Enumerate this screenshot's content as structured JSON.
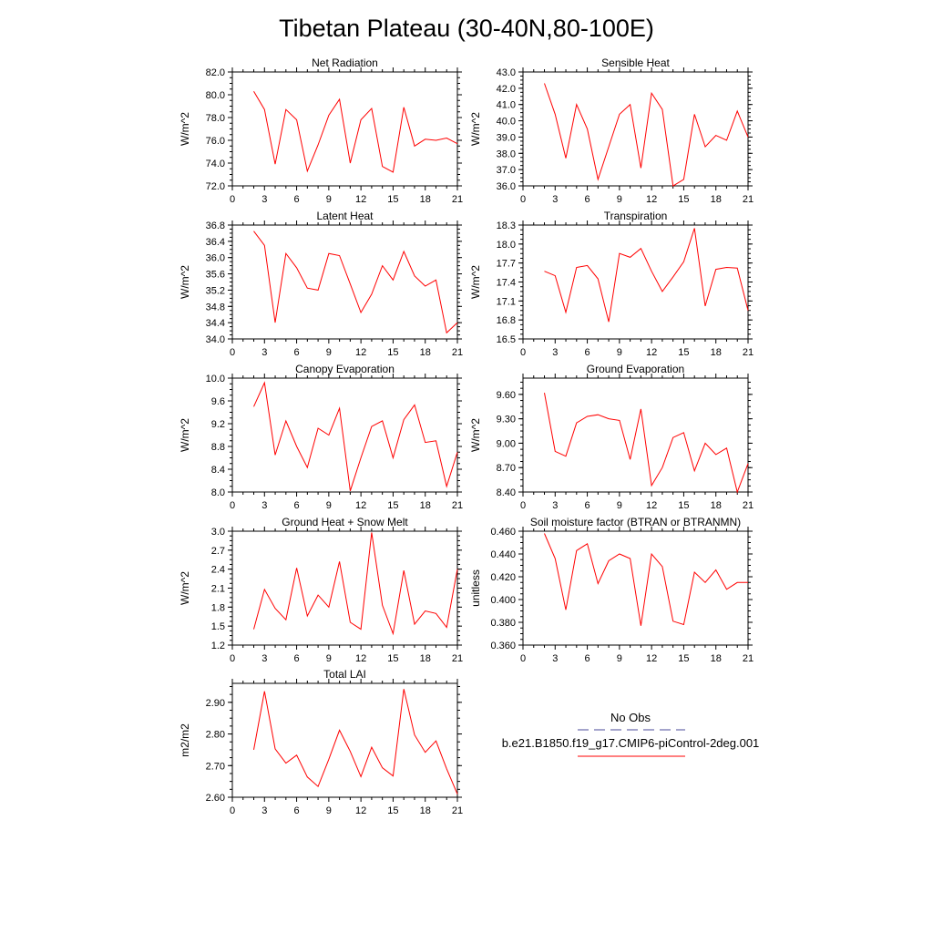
{
  "title": "Tibetan Plateau (30-40N,80-100E)",
  "legend": {
    "obs_label": "No Obs",
    "obs_color": "#4a4a9a",
    "model_label": "b.e21.B1850.f19_g17.CMIP6-piControl-2deg.001",
    "model_color": "#ff0000"
  },
  "chart_data": [
    {
      "type": "line",
      "title": "Net Radiation",
      "ylabel": "W/m^2",
      "xlim": [
        0,
        21
      ],
      "xticks": [
        0,
        3,
        6,
        9,
        12,
        15,
        18,
        21
      ],
      "ylim": [
        72.0,
        82.0
      ],
      "yticks": [
        "72.0",
        "74.0",
        "76.0",
        "78.0",
        "80.0",
        "82.0"
      ],
      "x": [
        2,
        3,
        4,
        5,
        6,
        7,
        8,
        9,
        10,
        11,
        12,
        13,
        14,
        15,
        16,
        17,
        18,
        19,
        20,
        21
      ],
      "series": [
        {
          "name": "b.e21.B1850.f19_g17.CMIP6-piControl-2deg.001",
          "values": [
            80.3,
            78.7,
            73.9,
            78.7,
            77.8,
            73.3,
            75.6,
            78.2,
            79.6,
            74.0,
            77.8,
            78.8,
            73.7,
            73.2,
            78.9,
            75.5,
            76.1,
            76.0,
            76.2,
            75.7
          ]
        }
      ]
    },
    {
      "type": "line",
      "title": "Sensible Heat",
      "ylabel": "W/m^2",
      "xlim": [
        0,
        21
      ],
      "xticks": [
        0,
        3,
        6,
        9,
        12,
        15,
        18,
        21
      ],
      "ylim": [
        36.0,
        43.0
      ],
      "yticks": [
        "36.0",
        "37.0",
        "38.0",
        "39.0",
        "40.0",
        "41.0",
        "42.0",
        "43.0"
      ],
      "x": [
        2,
        3,
        4,
        5,
        6,
        7,
        8,
        9,
        10,
        11,
        12,
        13,
        14,
        15,
        16,
        17,
        18,
        19,
        20,
        21
      ],
      "series": [
        {
          "name": "b.e21.B1850.f19_g17.CMIP6-piControl-2deg.001",
          "values": [
            42.3,
            40.4,
            37.7,
            41.0,
            39.5,
            36.4,
            38.4,
            40.4,
            41.0,
            37.1,
            41.7,
            40.7,
            36.0,
            36.4,
            40.4,
            38.4,
            39.1,
            38.8,
            40.6,
            39.0
          ]
        }
      ]
    },
    {
      "type": "line",
      "title": "Latent Heat",
      "ylabel": "W/m^2",
      "xlim": [
        0,
        21
      ],
      "xticks": [
        0,
        3,
        6,
        9,
        12,
        15,
        18,
        21
      ],
      "ylim": [
        34.0,
        36.8
      ],
      "yticks": [
        "34.0",
        "34.4",
        "34.8",
        "35.2",
        "35.6",
        "36.0",
        "36.4",
        "36.8"
      ],
      "x": [
        2,
        3,
        4,
        5,
        6,
        7,
        8,
        9,
        10,
        11,
        12,
        13,
        14,
        15,
        16,
        17,
        18,
        19,
        20,
        21
      ],
      "series": [
        {
          "name": "b.e21.B1850.f19_g17.CMIP6-piControl-2deg.001",
          "values": [
            36.65,
            36.3,
            34.4,
            36.1,
            35.75,
            35.25,
            35.2,
            36.1,
            36.05,
            35.35,
            34.65,
            35.1,
            35.8,
            35.45,
            36.15,
            35.55,
            35.3,
            35.45,
            34.15,
            34.4
          ]
        }
      ]
    },
    {
      "type": "line",
      "title": "Transpiration",
      "ylabel": "W/m^2",
      "xlim": [
        0,
        21
      ],
      "xticks": [
        0,
        3,
        6,
        9,
        12,
        15,
        18,
        21
      ],
      "ylim": [
        16.5,
        18.3
      ],
      "yticks": [
        "16.5",
        "16.8",
        "17.1",
        "17.4",
        "17.7",
        "18.0",
        "18.3"
      ],
      "x": [
        2,
        3,
        4,
        5,
        6,
        7,
        8,
        9,
        10,
        11,
        12,
        13,
        14,
        15,
        16,
        17,
        18,
        19,
        20,
        21
      ],
      "series": [
        {
          "name": "b.e21.B1850.f19_g17.CMIP6-piControl-2deg.001",
          "values": [
            17.57,
            17.5,
            16.92,
            17.63,
            17.66,
            17.45,
            16.77,
            17.85,
            17.79,
            17.93,
            17.57,
            17.25,
            17.48,
            17.72,
            18.25,
            17.02,
            17.6,
            17.63,
            17.62,
            16.95
          ]
        }
      ]
    },
    {
      "type": "line",
      "title": "Canopy Evaporation",
      "ylabel": "W/m^2",
      "xlim": [
        0,
        21
      ],
      "xticks": [
        0,
        3,
        6,
        9,
        12,
        15,
        18,
        21
      ],
      "ylim": [
        8.0,
        10.0
      ],
      "yticks": [
        "8.0",
        "8.4",
        "8.8",
        "9.2",
        "9.6",
        "10.0"
      ],
      "x": [
        2,
        3,
        4,
        5,
        6,
        7,
        8,
        9,
        10,
        11,
        12,
        13,
        14,
        15,
        16,
        17,
        18,
        19,
        20,
        21
      ],
      "series": [
        {
          "name": "b.e21.B1850.f19_g17.CMIP6-piControl-2deg.001",
          "values": [
            9.5,
            9.92,
            8.65,
            9.25,
            8.8,
            8.43,
            9.12,
            9.0,
            9.47,
            8.02,
            8.6,
            9.15,
            9.25,
            8.6,
            9.27,
            9.53,
            8.87,
            8.9,
            8.1,
            8.7
          ]
        }
      ]
    },
    {
      "type": "line",
      "title": "Ground Evaporation",
      "ylabel": "W/m^2",
      "xlim": [
        0,
        21
      ],
      "xticks": [
        0,
        3,
        6,
        9,
        12,
        15,
        18,
        21
      ],
      "ylim": [
        8.4,
        9.8
      ],
      "yticks": [
        "8.40",
        "8.70",
        "9.00",
        "9.30",
        "9.60"
      ],
      "x": [
        2,
        3,
        4,
        5,
        6,
        7,
        8,
        9,
        10,
        11,
        12,
        13,
        14,
        15,
        16,
        17,
        18,
        19,
        20,
        21
      ],
      "series": [
        {
          "name": "b.e21.B1850.f19_g17.CMIP6-piControl-2deg.001",
          "values": [
            9.62,
            8.9,
            8.84,
            9.25,
            9.33,
            9.35,
            9.3,
            9.28,
            8.8,
            9.42,
            8.48,
            8.7,
            9.07,
            9.13,
            8.66,
            9.0,
            8.86,
            8.94,
            8.4,
            8.75
          ]
        }
      ]
    },
    {
      "type": "line",
      "title": "Ground Heat + Snow Melt",
      "ylabel": "W/m^2",
      "xlim": [
        0,
        21
      ],
      "xticks": [
        0,
        3,
        6,
        9,
        12,
        15,
        18,
        21
      ],
      "ylim": [
        1.2,
        3.0
      ],
      "yticks": [
        "1.2",
        "1.5",
        "1.8",
        "2.1",
        "2.4",
        "2.7",
        "3.0"
      ],
      "x": [
        2,
        3,
        4,
        5,
        6,
        7,
        8,
        9,
        10,
        11,
        12,
        13,
        14,
        15,
        16,
        17,
        18,
        19,
        20,
        21
      ],
      "series": [
        {
          "name": "b.e21.B1850.f19_g17.CMIP6-piControl-2deg.001",
          "values": [
            1.45,
            2.08,
            1.78,
            1.6,
            2.42,
            1.66,
            1.99,
            1.8,
            2.52,
            1.56,
            1.45,
            2.98,
            1.83,
            1.38,
            2.38,
            1.53,
            1.74,
            1.7,
            1.48,
            2.4
          ]
        }
      ]
    },
    {
      "type": "line",
      "title": "Soil moisture factor (BTRAN or BTRANMN)",
      "ylabel": "unitless",
      "xlim": [
        0,
        21
      ],
      "xticks": [
        0,
        3,
        6,
        9,
        12,
        15,
        18,
        21
      ],
      "ylim": [
        0.36,
        0.46
      ],
      "yticks": [
        "0.360",
        "0.380",
        "0.400",
        "0.420",
        "0.440",
        "0.460"
      ],
      "x": [
        2,
        3,
        4,
        5,
        6,
        7,
        8,
        9,
        10,
        11,
        12,
        13,
        14,
        15,
        16,
        17,
        18,
        19,
        20,
        21
      ],
      "series": [
        {
          "name": "b.e21.B1850.f19_g17.CMIP6-piControl-2deg.001",
          "values": [
            0.458,
            0.436,
            0.391,
            0.443,
            0.449,
            0.414,
            0.434,
            0.44,
            0.436,
            0.377,
            0.44,
            0.429,
            0.381,
            0.378,
            0.424,
            0.415,
            0.426,
            0.409,
            0.415,
            0.415
          ]
        }
      ]
    },
    {
      "type": "line",
      "title": "Total LAI",
      "ylabel": "m2/m2",
      "xlim": [
        0,
        21
      ],
      "xticks": [
        0,
        3,
        6,
        9,
        12,
        15,
        18,
        21
      ],
      "ylim": [
        2.6,
        2.96
      ],
      "yticks": [
        "2.60",
        "2.70",
        "2.80",
        "2.90"
      ],
      "x": [
        2,
        3,
        4,
        5,
        6,
        7,
        8,
        9,
        10,
        11,
        12,
        13,
        14,
        15,
        16,
        17,
        18,
        19,
        20,
        21
      ],
      "series": [
        {
          "name": "b.e21.B1850.f19_g17.CMIP6-piControl-2deg.001",
          "values": [
            2.75,
            2.935,
            2.753,
            2.708,
            2.733,
            2.664,
            2.634,
            2.72,
            2.812,
            2.745,
            2.665,
            2.758,
            2.693,
            2.667,
            2.942,
            2.797,
            2.742,
            2.778,
            2.69,
            2.61
          ]
        }
      ]
    }
  ]
}
